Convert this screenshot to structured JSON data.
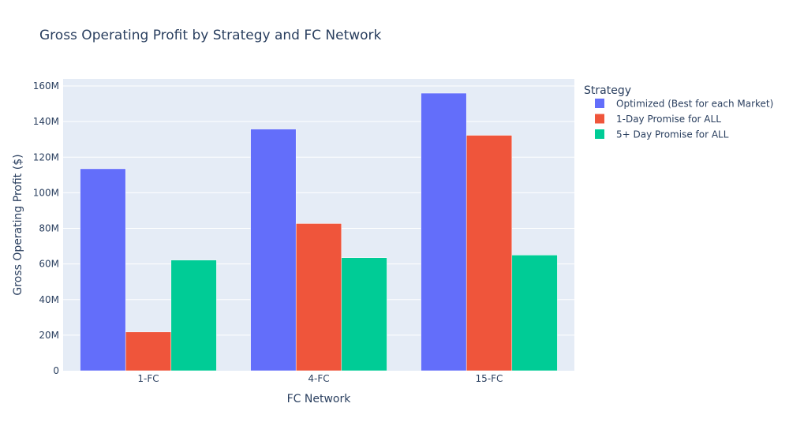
{
  "chart_data": {
    "type": "bar",
    "title": "Gross Operating Profit by Strategy and FC Network",
    "xlabel": "FC Network",
    "ylabel": "Gross Operating Profit ($)",
    "categories": [
      "1-FC",
      "4-FC",
      "15-FC"
    ],
    "ylim": [
      0,
      164000000
    ],
    "yticks": [
      0,
      20000000,
      40000000,
      60000000,
      80000000,
      100000000,
      120000000,
      140000000,
      160000000
    ],
    "ytick_labels": [
      "0",
      "20M",
      "40M",
      "60M",
      "80M",
      "100M",
      "120M",
      "140M",
      "160M"
    ],
    "grid": true,
    "legend_title": "Strategy",
    "legend_position": "right",
    "series": [
      {
        "name": "Optimized (Best for each Market)",
        "color": "#636efa",
        "values": [
          113500000,
          135800000,
          156000000
        ]
      },
      {
        "name": "1-Day Promise for ALL",
        "color": "#ef553b",
        "values": [
          21800000,
          82700000,
          132300000
        ]
      },
      {
        "name": "5+ Day Promise for ALL",
        "color": "#00cc96",
        "values": [
          62200000,
          63500000,
          65000000
        ]
      }
    ],
    "colors": {
      "plot_background": "#e5ecf6",
      "gridline": "#ffffff",
      "text": "#2a3f5f"
    }
  }
}
